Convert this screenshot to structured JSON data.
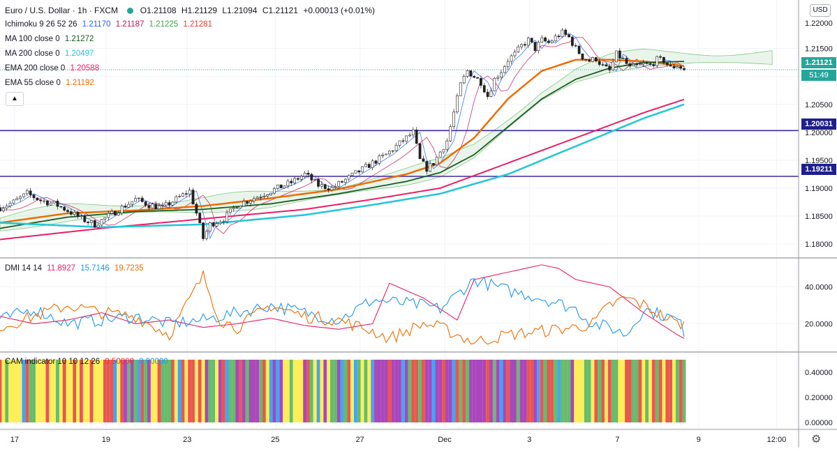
{
  "header": {
    "symbol_title": "Euro / U.S. Dollar · 1h · FXCM",
    "ohlc": {
      "o": "O1.21108",
      "h": "H1.21129",
      "l": "L1.21094",
      "c": "C1.21121",
      "chg": "+0.00013 (+0.01%)"
    }
  },
  "indicators": [
    {
      "name": "Ichimoku 9 26 52 26",
      "values": [
        "1.21170",
        "1.21187",
        "1.21225",
        "1.21281"
      ],
      "colors": [
        "#2962ff",
        "#c2185b",
        "#43a047",
        "#e53935"
      ]
    },
    {
      "name": "MA 100 close 0",
      "values": [
        "1.21272"
      ],
      "colors": [
        "#1b5e20"
      ]
    },
    {
      "name": "MA 200 close 0",
      "values": [
        "1.20497"
      ],
      "colors": [
        "#26c6da"
      ]
    },
    {
      "name": "EMA 200 close 0",
      "values": [
        "1.20588"
      ],
      "colors": [
        "#e91e63"
      ]
    },
    {
      "name": "EMA 55 close 0",
      "values": [
        "1.21192"
      ],
      "colors": [
        "#ef6c00"
      ]
    }
  ],
  "dmi_legend": {
    "name": "DMI 14 14",
    "values": [
      "11.8927",
      "15.7146",
      "19.7235"
    ],
    "colors": [
      "#e91e63",
      "#2196f3",
      "#ef6c00"
    ]
  },
  "cam_legend": {
    "name": "CAM indicator 10 10 12 26",
    "values": [
      "0.50000",
      "0.00000"
    ],
    "colors": [
      "#e53935",
      "#2196f3"
    ]
  },
  "currency_button": "USD",
  "price_axis": {
    "main_ticks": [
      "1.21500",
      "1.21000",
      "1.20500",
      "1.20000",
      "1.19500",
      "1.19000",
      "1.18500",
      "1.18000"
    ],
    "top_tick": "1.21500",
    "dmi_ticks": [
      "40.0000",
      "20.0000"
    ],
    "cam_ticks": [
      "0.40000",
      "0.20000",
      "0.00000"
    ]
  },
  "price_tags": {
    "last": "1.21121",
    "countdown": "51:49",
    "level_upper": "1.20031",
    "level_lower": "1.19211"
  },
  "time_axis": [
    "17",
    "19",
    "23",
    "25",
    "27",
    "Dec",
    "3",
    "7",
    "9",
    "12:00"
  ],
  "chart_data": [
    {
      "type": "candlestick",
      "title": "Euro / U.S. Dollar · 1h · FXCM",
      "ylim": [
        1.1775,
        1.2237
      ],
      "x_labels": [
        "17",
        "19",
        "23",
        "25",
        "27",
        "Dec",
        "3",
        "7",
        "9",
        "12:00"
      ],
      "close_path": [
        [
          0,
          1.1865
        ],
        [
          4,
          1.1875
        ],
        [
          8,
          1.189
        ],
        [
          12,
          1.1878
        ],
        [
          16,
          1.1872
        ],
        [
          20,
          1.186
        ],
        [
          24,
          1.1845
        ],
        [
          28,
          1.1835
        ],
        [
          32,
          1.185
        ],
        [
          36,
          1.1865
        ],
        [
          40,
          1.188
        ],
        [
          44,
          1.187
        ],
        [
          48,
          1.1865
        ],
        [
          52,
          1.188
        ],
        [
          56,
          1.1895
        ],
        [
          58,
          1.1855
        ],
        [
          60,
          1.181
        ],
        [
          62,
          1.1835
        ],
        [
          66,
          1.1845
        ],
        [
          70,
          1.187
        ],
        [
          74,
          1.188
        ],
        [
          78,
          1.189
        ],
        [
          82,
          1.19
        ],
        [
          86,
          1.191
        ],
        [
          90,
          1.1925
        ],
        [
          94,
          1.1905
        ],
        [
          98,
          1.19
        ],
        [
          102,
          1.1915
        ],
        [
          106,
          1.193
        ],
        [
          110,
          1.1945
        ],
        [
          114,
          1.196
        ],
        [
          118,
          1.198
        ],
        [
          122,
          1.2
        ],
        [
          124,
          1.195
        ],
        [
          126,
          1.1935
        ],
        [
          128,
          1.1945
        ],
        [
          130,
          1.1965
        ],
        [
          132,
          1.1985
        ],
        [
          134,
          1.2035
        ],
        [
          136,
          1.2085
        ],
        [
          138,
          1.211
        ],
        [
          140,
          1.21
        ],
        [
          142,
          1.209
        ],
        [
          144,
          1.2065
        ],
        [
          146,
          1.2095
        ],
        [
          148,
          1.211
        ],
        [
          150,
          1.213
        ],
        [
          152,
          1.214
        ],
        [
          154,
          1.2155
        ],
        [
          156,
          1.2165
        ],
        [
          158,
          1.215
        ],
        [
          160,
          1.2165
        ],
        [
          162,
          1.216
        ],
        [
          164,
          1.217
        ],
        [
          166,
          1.2178
        ],
        [
          168,
          1.217
        ],
        [
          170,
          1.215
        ],
        [
          172,
          1.2135
        ],
        [
          174,
          1.2128
        ],
        [
          176,
          1.2132
        ],
        [
          178,
          1.2118
        ],
        [
          180,
          1.211
        ],
        [
          182,
          1.214
        ],
        [
          184,
          1.213
        ],
        [
          186,
          1.2115
        ],
        [
          188,
          1.2118
        ],
        [
          190,
          1.2122
        ],
        [
          192,
          1.212
        ],
        [
          194,
          1.213
        ],
        [
          196,
          1.2128
        ],
        [
          198,
          1.2115
        ],
        [
          200,
          1.212
        ],
        [
          202,
          1.2112
        ]
      ],
      "horizontal_levels": [
        1.20031,
        1.19211
      ],
      "series": [
        {
          "name": "EMA 55 close 0",
          "values": [
            [
              0,
              1.1838
            ],
            [
              20,
              1.1855
            ],
            [
              40,
              1.186
            ],
            [
              60,
              1.1868
            ],
            [
              80,
              1.1882
            ],
            [
              100,
              1.1898
            ],
            [
              120,
              1.1925
            ],
            [
              130,
              1.1945
            ],
            [
              140,
              1.199
            ],
            [
              150,
              1.206
            ],
            [
              160,
              1.211
            ],
            [
              170,
              1.213
            ],
            [
              180,
              1.213
            ],
            [
              190,
              1.2127
            ],
            [
              202,
              1.2119
            ]
          ]
        },
        {
          "name": "MA 100 close 0",
          "values": [
            [
              0,
              1.1828
            ],
            [
              20,
              1.1848
            ],
            [
              40,
              1.1858
            ],
            [
              60,
              1.1862
            ],
            [
              80,
              1.1872
            ],
            [
              100,
              1.189
            ],
            [
              120,
              1.1912
            ],
            [
              130,
              1.1928
            ],
            [
              140,
              1.196
            ],
            [
              150,
              1.201
            ],
            [
              160,
              1.206
            ],
            [
              170,
              1.2095
            ],
            [
              180,
              1.2115
            ],
            [
              190,
              1.2125
            ],
            [
              202,
              1.2127
            ]
          ]
        },
        {
          "name": "EMA 200 close 0",
          "values": [
            [
              0,
              1.1808
            ],
            [
              30,
              1.1828
            ],
            [
              60,
              1.1845
            ],
            [
              90,
              1.1862
            ],
            [
              110,
              1.188
            ],
            [
              130,
              1.19
            ],
            [
              150,
              1.1945
            ],
            [
              170,
              1.199
            ],
            [
              190,
              1.2035
            ],
            [
              202,
              1.2059
            ]
          ]
        },
        {
          "name": "MA 200 close 0",
          "values": [
            [
              0,
              1.1838
            ],
            [
              30,
              1.183
            ],
            [
              60,
              1.1835
            ],
            [
              90,
              1.1852
            ],
            [
              110,
              1.187
            ],
            [
              130,
              1.189
            ],
            [
              150,
              1.1925
            ],
            [
              170,
              1.1975
            ],
            [
              190,
              1.2025
            ],
            [
              202,
              1.205
            ]
          ]
        }
      ]
    },
    {
      "type": "line",
      "title": "DMI 14 14",
      "ylim": [
        5,
        55
      ],
      "series": [
        {
          "name": "",
          "values": [
            [
              0,
              24
            ],
            [
              10,
              20
            ],
            [
              20,
              22
            ],
            [
              30,
              26
            ],
            [
              40,
              20
            ],
            [
              50,
              22
            ],
            [
              60,
              18
            ],
            [
              70,
              20
            ],
            [
              80,
              23
            ],
            [
              90,
              19
            ],
            [
              100,
              17
            ],
            [
              110,
              20
            ],
            [
              115,
              42
            ],
            [
              125,
              34
            ],
            [
              135,
              22
            ],
            [
              140,
              44
            ],
            [
              150,
              48
            ],
            [
              160,
              52
            ],
            [
              165,
              50
            ],
            [
              170,
              44
            ],
            [
              180,
              40
            ],
            [
              190,
              26
            ],
            [
              200,
              14
            ],
            [
              202,
              12
            ]
          ]
        },
        {
          "name": "",
          "values": [
            [
              0,
              22
            ],
            [
              10,
              28
            ],
            [
              20,
              20
            ],
            [
              30,
              22
            ],
            [
              40,
              24
            ],
            [
              50,
              20
            ],
            [
              60,
              22
            ],
            [
              70,
              26
            ],
            [
              80,
              30
            ],
            [
              90,
              26
            ],
            [
              100,
              22
            ],
            [
              110,
              33
            ],
            [
              115,
              32
            ],
            [
              125,
              30
            ],
            [
              130,
              28
            ],
            [
              140,
              44
            ],
            [
              150,
              38
            ],
            [
              160,
              34
            ],
            [
              170,
              28
            ],
            [
              175,
              20
            ],
            [
              180,
              18
            ],
            [
              185,
              14
            ],
            [
              190,
              28
            ],
            [
              200,
              22
            ],
            [
              202,
              16
            ]
          ]
        },
        {
          "name": "",
          "values": [
            [
              0,
              18
            ],
            [
              10,
              24
            ],
            [
              20,
              30
            ],
            [
              30,
              26
            ],
            [
              40,
              24
            ],
            [
              50,
              14
            ],
            [
              60,
              46
            ],
            [
              65,
              22
            ],
            [
              70,
              18
            ],
            [
              80,
              30
            ],
            [
              90,
              24
            ],
            [
              100,
              22
            ],
            [
              110,
              16
            ],
            [
              115,
              12
            ],
            [
              125,
              20
            ],
            [
              130,
              18
            ],
            [
              140,
              10
            ],
            [
              150,
              14
            ],
            [
              160,
              16
            ],
            [
              170,
              18
            ],
            [
              175,
              20
            ],
            [
              180,
              30
            ],
            [
              185,
              34
            ],
            [
              190,
              30
            ],
            [
              200,
              20
            ],
            [
              202,
              20
            ]
          ]
        }
      ]
    },
    {
      "type": "bar",
      "title": "CAM indicator 10 10 12 26",
      "ylim": [
        0,
        0.5
      ],
      "bar_value": 0.5,
      "bar_colors": [
        "#9c27b0",
        "#2196f3",
        "#4caf50",
        "#e53935",
        "#ffeb3b"
      ]
    }
  ]
}
